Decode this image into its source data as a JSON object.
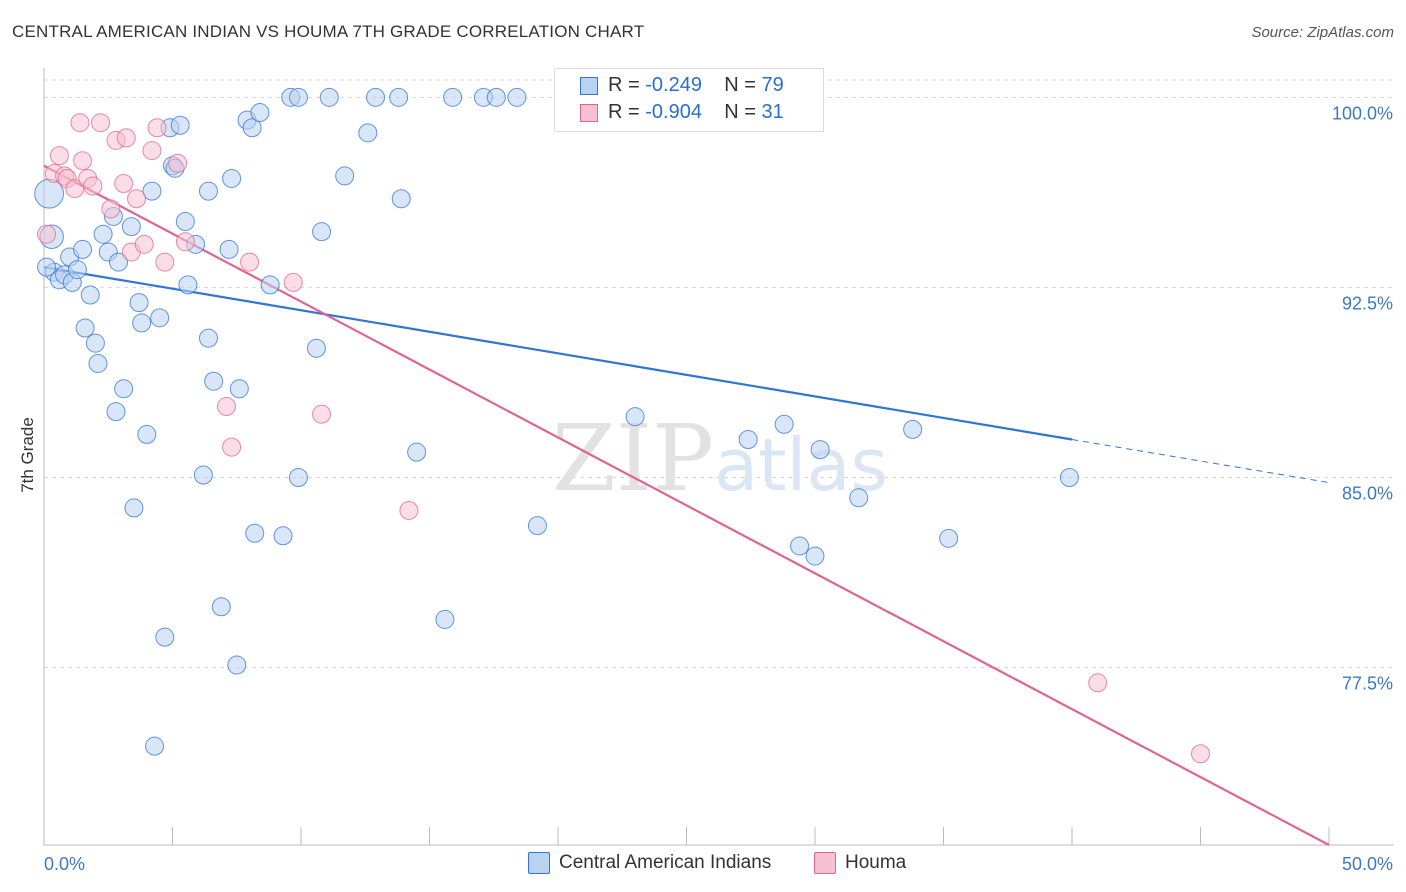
{
  "title": "CENTRAL AMERICAN INDIAN VS HOUMA 7TH GRADE CORRELATION CHART",
  "source": "Source: ZipAtlas.com",
  "watermark": "ZIPatlas",
  "colors": {
    "blue": "#2f74d6",
    "blue_fill": "#b9d2f1",
    "pink": "#e0648e",
    "pink_fill": "#f5c1d2",
    "tick_text": "#3c78c8"
  },
  "legend": {
    "rows": [
      {
        "r_label": "R =",
        "r_value": "-0.249",
        "n_label": "N =",
        "n_value": "79"
      },
      {
        "r_label": "R =",
        "r_value": "-0.904",
        "n_label": "N =",
        "n_value": "31"
      }
    ]
  },
  "chart_data": {
    "type": "scatter",
    "title": "CENTRAL AMERICAN INDIAN VS HOUMA 7TH GRADE CORRELATION CHART",
    "xlabel": "",
    "ylabel": "7th Grade",
    "xlim": [
      0,
      50
    ],
    "ylim": [
      70.5,
      101
    ],
    "x_tick_labels": [
      "0.0%",
      "50.0%"
    ],
    "y_ticks": [
      77.5,
      85.0,
      92.5,
      100.0
    ],
    "y_tick_labels": [
      "77.5%",
      "85.0%",
      "92.5%",
      "100.0%"
    ],
    "grid": true,
    "series": [
      {
        "name": "Central American Indians",
        "color": "blue",
        "trend": {
          "x0": 0,
          "y0": 93.3,
          "x1": 40,
          "y1": 86.5,
          "dash_to_x": 50,
          "dash_to_y": 84.8
        },
        "points": [
          [
            0.2,
            96.2,
            1.6
          ],
          [
            0.3,
            94.5,
            1.3
          ],
          [
            0.4,
            93.1,
            1
          ],
          [
            0.6,
            92.8,
            1
          ],
          [
            0.8,
            93.0,
            1
          ],
          [
            1.0,
            93.7,
            1
          ],
          [
            1.1,
            92.7,
            1
          ],
          [
            1.3,
            93.2,
            1
          ],
          [
            1.5,
            94.0,
            1
          ],
          [
            1.6,
            90.9,
            1
          ],
          [
            1.8,
            92.2,
            1
          ],
          [
            2.0,
            90.3,
            1
          ],
          [
            2.1,
            89.5,
            1
          ],
          [
            2.3,
            94.6,
            1
          ],
          [
            2.5,
            93.9,
            1
          ],
          [
            2.7,
            95.3,
            1
          ],
          [
            2.8,
            87.6,
            1
          ],
          [
            2.9,
            93.5,
            1
          ],
          [
            3.1,
            88.5,
            1
          ],
          [
            3.4,
            94.9,
            1
          ],
          [
            3.5,
            83.8,
            1
          ],
          [
            3.7,
            91.9,
            1
          ],
          [
            3.8,
            91.1,
            1
          ],
          [
            4.0,
            86.7,
            1
          ],
          [
            4.2,
            96.3,
            1
          ],
          [
            4.3,
            74.4,
            1
          ],
          [
            4.5,
            91.3,
            1
          ],
          [
            4.7,
            78.7,
            1
          ],
          [
            4.9,
            98.8,
            1
          ],
          [
            5.0,
            97.3,
            1
          ],
          [
            5.1,
            97.2,
            1
          ],
          [
            5.3,
            98.9,
            1
          ],
          [
            5.5,
            95.1,
            1
          ],
          [
            5.6,
            92.6,
            1
          ],
          [
            5.9,
            94.2,
            1
          ],
          [
            6.2,
            85.1,
            1
          ],
          [
            6.4,
            90.5,
            1
          ],
          [
            6.4,
            96.3,
            1
          ],
          [
            6.6,
            88.8,
            1
          ],
          [
            6.9,
            79.9,
            1
          ],
          [
            7.2,
            94.0,
            1
          ],
          [
            7.3,
            96.8,
            1
          ],
          [
            7.5,
            77.6,
            1
          ],
          [
            7.6,
            88.5,
            1
          ],
          [
            7.9,
            99.1,
            1
          ],
          [
            8.1,
            98.8,
            1
          ],
          [
            8.2,
            82.8,
            1
          ],
          [
            8.4,
            99.4,
            1
          ],
          [
            8.8,
            92.6,
            1
          ],
          [
            9.3,
            82.7,
            1
          ],
          [
            9.6,
            100.0,
            1
          ],
          [
            9.9,
            100.0,
            1
          ],
          [
            9.9,
            85.0,
            1
          ],
          [
            10.6,
            90.1,
            1
          ],
          [
            10.8,
            94.7,
            1
          ],
          [
            11.1,
            100.0,
            1
          ],
          [
            11.7,
            96.9,
            1
          ],
          [
            12.6,
            98.6,
            1
          ],
          [
            12.9,
            100.0,
            1
          ],
          [
            13.8,
            100.0,
            1
          ],
          [
            13.9,
            96.0,
            1
          ],
          [
            14.5,
            86.0,
            1
          ],
          [
            15.6,
            79.4,
            1
          ],
          [
            15.9,
            100.0,
            1
          ],
          [
            17.1,
            100.0,
            1
          ],
          [
            17.6,
            100.0,
            1
          ],
          [
            18.4,
            100.0,
            1
          ],
          [
            19.2,
            83.1,
            1
          ],
          [
            23.0,
            87.4,
            1
          ],
          [
            27.4,
            86.5,
            1
          ],
          [
            28.8,
            87.1,
            1
          ],
          [
            29.4,
            82.3,
            1
          ],
          [
            30.0,
            81.9,
            1
          ],
          [
            30.2,
            86.1,
            1
          ],
          [
            31.7,
            84.2,
            1
          ],
          [
            33.8,
            86.9,
            1
          ],
          [
            35.2,
            82.6,
            1
          ],
          [
            39.9,
            85.0,
            1
          ],
          [
            0.1,
            93.3,
            1
          ]
        ]
      },
      {
        "name": "Houma",
        "color": "pink",
        "trend": {
          "x0": 0,
          "y0": 97.3,
          "x1": 50,
          "y1": 70.5
        },
        "points": [
          [
            0.1,
            94.6,
            1
          ],
          [
            0.4,
            97.0,
            1
          ],
          [
            0.6,
            97.7,
            1
          ],
          [
            0.8,
            96.9,
            1
          ],
          [
            0.9,
            96.8,
            1
          ],
          [
            1.2,
            96.4,
            1
          ],
          [
            1.4,
            99.0,
            1
          ],
          [
            1.5,
            97.5,
            1
          ],
          [
            1.7,
            96.8,
            1
          ],
          [
            1.9,
            96.5,
            1
          ],
          [
            2.2,
            99.0,
            1
          ],
          [
            2.6,
            95.6,
            1
          ],
          [
            2.8,
            98.3,
            1
          ],
          [
            3.1,
            96.6,
            1
          ],
          [
            3.2,
            98.4,
            1
          ],
          [
            3.4,
            93.9,
            1
          ],
          [
            3.6,
            96.0,
            1
          ],
          [
            3.9,
            94.2,
            1
          ],
          [
            4.2,
            97.9,
            1
          ],
          [
            4.4,
            98.8,
            1
          ],
          [
            4.7,
            93.5,
            1
          ],
          [
            5.2,
            97.4,
            1
          ],
          [
            5.5,
            94.3,
            1
          ],
          [
            7.1,
            87.8,
            1
          ],
          [
            7.3,
            86.2,
            1
          ],
          [
            8.0,
            93.5,
            1
          ],
          [
            9.7,
            92.7,
            1
          ],
          [
            10.8,
            87.5,
            1
          ],
          [
            14.2,
            83.7,
            1
          ],
          [
            41.0,
            76.9,
            1
          ],
          [
            45.0,
            74.1,
            1
          ]
        ]
      }
    ]
  },
  "bottom_legend": [
    "Central American Indians",
    "Houma"
  ]
}
